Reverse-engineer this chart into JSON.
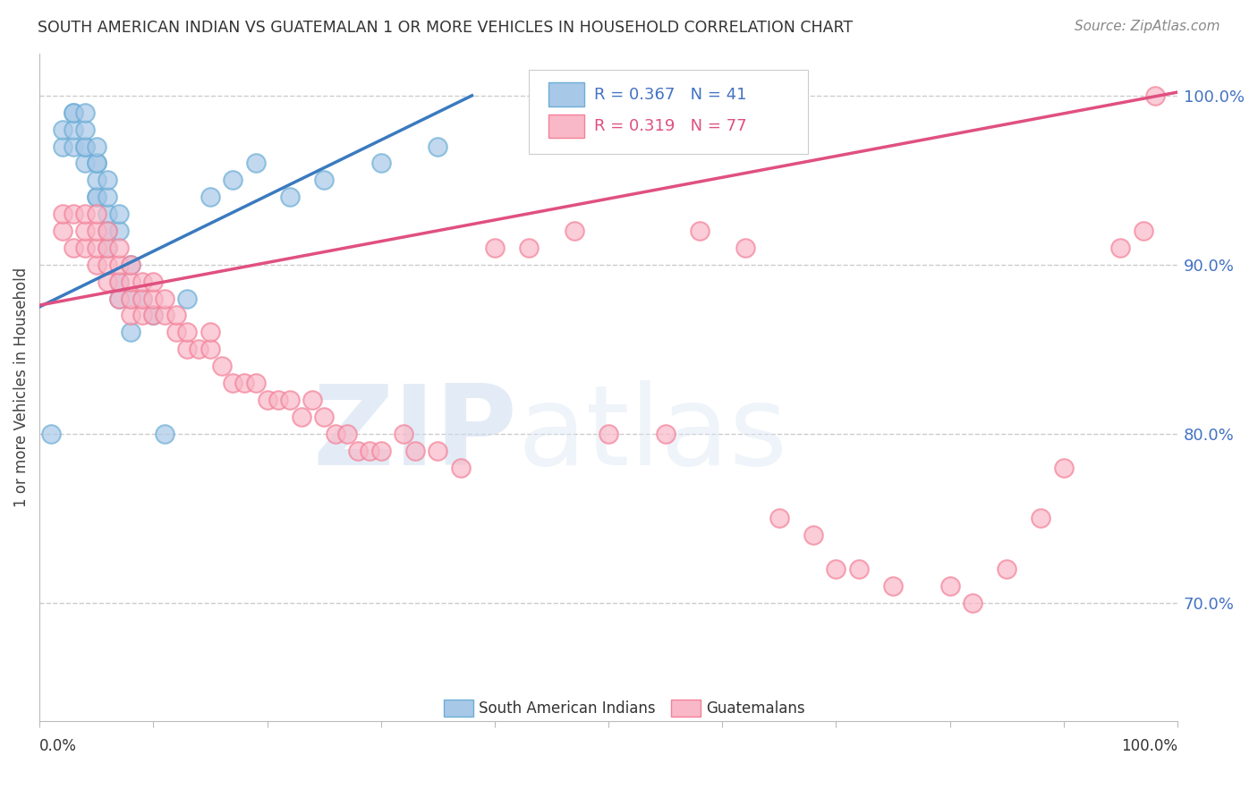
{
  "title": "SOUTH AMERICAN INDIAN VS GUATEMALAN 1 OR MORE VEHICLES IN HOUSEHOLD CORRELATION CHART",
  "source": "Source: ZipAtlas.com",
  "ylabel": "1 or more Vehicles in Household",
  "ytick_values": [
    0.7,
    0.8,
    0.9,
    1.0
  ],
  "xlim": [
    0.0,
    1.0
  ],
  "ylim": [
    0.63,
    1.025
  ],
  "legend_r1": "R = 0.367",
  "legend_n1": "N = 41",
  "legend_r2": "R = 0.319",
  "legend_n2": "N = 77",
  "blue_color": "#a8c8e8",
  "blue_edge_color": "#6baed6",
  "blue_line_color": "#3a7abf",
  "pink_color": "#f8b8c8",
  "pink_edge_color": "#f48098",
  "pink_line_color": "#e05080",
  "watermark_zip": "ZIP",
  "watermark_atlas": "atlas",
  "blue_scatter_x": [
    0.01,
    0.02,
    0.02,
    0.03,
    0.03,
    0.03,
    0.03,
    0.04,
    0.04,
    0.04,
    0.04,
    0.04,
    0.05,
    0.05,
    0.05,
    0.05,
    0.05,
    0.05,
    0.06,
    0.06,
    0.06,
    0.06,
    0.06,
    0.07,
    0.07,
    0.07,
    0.07,
    0.08,
    0.08,
    0.08,
    0.09,
    0.1,
    0.11,
    0.13,
    0.15,
    0.17,
    0.19,
    0.22,
    0.25,
    0.3,
    0.35
  ],
  "blue_scatter_y": [
    0.8,
    0.97,
    0.98,
    0.97,
    0.98,
    0.99,
    0.99,
    0.96,
    0.97,
    0.97,
    0.98,
    0.99,
    0.94,
    0.94,
    0.95,
    0.96,
    0.96,
    0.97,
    0.91,
    0.92,
    0.93,
    0.94,
    0.95,
    0.88,
    0.89,
    0.92,
    0.93,
    0.86,
    0.88,
    0.9,
    0.88,
    0.87,
    0.8,
    0.88,
    0.94,
    0.95,
    0.96,
    0.94,
    0.95,
    0.96,
    0.97
  ],
  "pink_scatter_x": [
    0.02,
    0.02,
    0.03,
    0.03,
    0.04,
    0.04,
    0.04,
    0.05,
    0.05,
    0.05,
    0.05,
    0.06,
    0.06,
    0.06,
    0.06,
    0.07,
    0.07,
    0.07,
    0.07,
    0.08,
    0.08,
    0.08,
    0.08,
    0.09,
    0.09,
    0.09,
    0.1,
    0.1,
    0.1,
    0.11,
    0.11,
    0.12,
    0.12,
    0.13,
    0.13,
    0.14,
    0.15,
    0.15,
    0.16,
    0.17,
    0.18,
    0.19,
    0.2,
    0.21,
    0.22,
    0.23,
    0.24,
    0.25,
    0.26,
    0.27,
    0.28,
    0.29,
    0.3,
    0.32,
    0.33,
    0.35,
    0.37,
    0.4,
    0.43,
    0.47,
    0.5,
    0.55,
    0.58,
    0.62,
    0.65,
    0.68,
    0.7,
    0.72,
    0.75,
    0.8,
    0.82,
    0.85,
    0.88,
    0.9,
    0.95,
    0.97,
    0.98
  ],
  "pink_scatter_y": [
    0.92,
    0.93,
    0.91,
    0.93,
    0.91,
    0.92,
    0.93,
    0.9,
    0.91,
    0.92,
    0.93,
    0.89,
    0.9,
    0.91,
    0.92,
    0.88,
    0.89,
    0.9,
    0.91,
    0.87,
    0.88,
    0.89,
    0.9,
    0.87,
    0.88,
    0.89,
    0.87,
    0.88,
    0.89,
    0.87,
    0.88,
    0.86,
    0.87,
    0.85,
    0.86,
    0.85,
    0.85,
    0.86,
    0.84,
    0.83,
    0.83,
    0.83,
    0.82,
    0.82,
    0.82,
    0.81,
    0.82,
    0.81,
    0.8,
    0.8,
    0.79,
    0.79,
    0.79,
    0.8,
    0.79,
    0.79,
    0.78,
    0.91,
    0.91,
    0.92,
    0.8,
    0.8,
    0.92,
    0.91,
    0.75,
    0.74,
    0.72,
    0.72,
    0.71,
    0.71,
    0.7,
    0.72,
    0.75,
    0.78,
    0.91,
    0.92,
    1.0
  ],
  "blue_line_x": [
    0.0,
    0.38
  ],
  "blue_line_y": [
    0.875,
    1.0
  ],
  "pink_line_x": [
    0.0,
    1.0
  ],
  "pink_line_y": [
    0.876,
    1.002
  ]
}
